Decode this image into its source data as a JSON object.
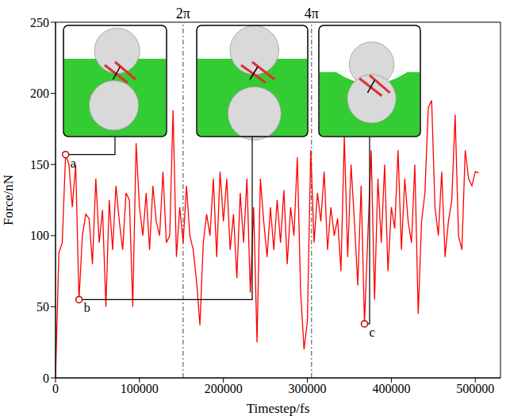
{
  "chart_data": {
    "type": "line",
    "x_label": "Timestep/fs",
    "y_label": "Force/nN",
    "color": "#ff0000",
    "xlim": [
      0,
      530000
    ],
    "xticks": [
      0,
      100000,
      200000,
      300000,
      400000,
      500000
    ],
    "ylim": [
      0,
      250
    ],
    "yticks": [
      0,
      50,
      100,
      150,
      200,
      250
    ],
    "grid": false,
    "x": [
      0,
      4000,
      8000,
      12000,
      16000,
      20000,
      24000,
      28000,
      32000,
      36000,
      40000,
      44000,
      48000,
      52000,
      56000,
      60000,
      64000,
      68000,
      72000,
      76000,
      80000,
      84000,
      88000,
      92000,
      96000,
      100000,
      104000,
      108000,
      112000,
      116000,
      120000,
      124000,
      128000,
      132000,
      136000,
      140000,
      144000,
      148000,
      152000,
      156000,
      160000,
      164000,
      168000,
      172000,
      176000,
      180000,
      184000,
      188000,
      192000,
      196000,
      200000,
      204000,
      208000,
      212000,
      216000,
      220000,
      224000,
      228000,
      232000,
      236000,
      240000,
      244000,
      248000,
      252000,
      256000,
      260000,
      264000,
      268000,
      272000,
      276000,
      280000,
      284000,
      288000,
      292000,
      296000,
      300000,
      304000,
      308000,
      312000,
      316000,
      320000,
      324000,
      328000,
      332000,
      336000,
      340000,
      344000,
      348000,
      352000,
      356000,
      360000,
      364000,
      368000,
      372000,
      376000,
      380000,
      384000,
      388000,
      392000,
      396000,
      400000,
      404000,
      408000,
      412000,
      416000,
      420000,
      424000,
      428000,
      432000,
      436000,
      440000,
      444000,
      448000,
      452000,
      456000,
      460000,
      464000,
      468000,
      472000,
      476000,
      480000,
      484000,
      488000,
      492000,
      496000,
      500000,
      504000
    ],
    "values": [
      0,
      88,
      95,
      157,
      150,
      120,
      150,
      55,
      100,
      115,
      112,
      80,
      140,
      95,
      118,
      50,
      125,
      90,
      135,
      110,
      90,
      130,
      125,
      50,
      165,
      120,
      100,
      130,
      90,
      135,
      110,
      100,
      145,
      95,
      100,
      188,
      85,
      120,
      95,
      135,
      100,
      90,
      68,
      37,
      95,
      115,
      100,
      140,
      85,
      145,
      110,
      140,
      90,
      115,
      70,
      130,
      95,
      140,
      60,
      120,
      25,
      140,
      110,
      85,
      120,
      90,
      125,
      95,
      132,
      80,
      120,
      100,
      155,
      60,
      20,
      40,
      160,
      95,
      130,
      110,
      145,
      90,
      120,
      100,
      112,
      75,
      170,
      85,
      150,
      110,
      65,
      135,
      38,
      100,
      160,
      55,
      140,
      95,
      150,
      75,
      120,
      105,
      160,
      90,
      140,
      110,
      95,
      150,
      45,
      110,
      130,
      190,
      195,
      120,
      100,
      145,
      85,
      110,
      125,
      185,
      100,
      90,
      160,
      140,
      135,
      145,
      144
    ],
    "vertical_lines": [
      {
        "x": 152000,
        "label": "2π"
      },
      {
        "x": 305000,
        "label": "4π"
      }
    ],
    "annotations": [
      {
        "label": "a",
        "x": 12000,
        "y": 157,
        "color": "#c00000"
      },
      {
        "label": "b",
        "x": 28000,
        "y": 55,
        "color": "#c00000"
      },
      {
        "label": "c",
        "x": 368000,
        "y": 38,
        "color": "#c00000"
      }
    ]
  }
}
